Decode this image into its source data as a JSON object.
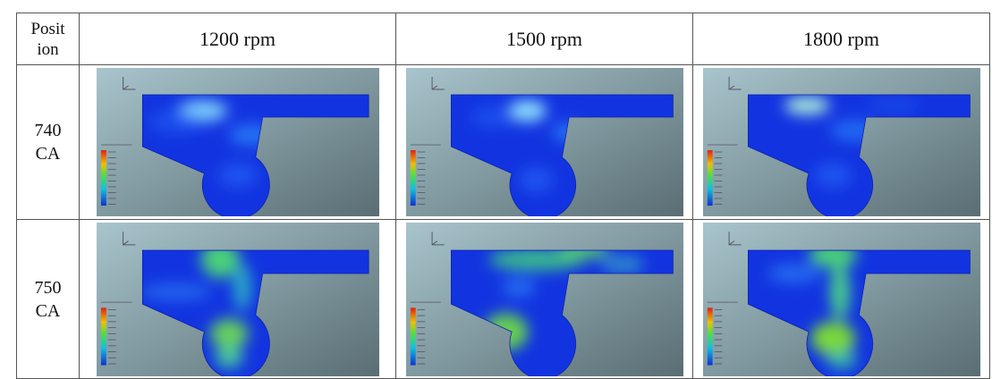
{
  "table": {
    "header": {
      "position_lines": [
        "Posit",
        "ion"
      ],
      "columns": [
        "1200 rpm",
        "1500 rpm",
        "1800 rpm"
      ]
    },
    "rows": [
      {
        "lines": [
          "740",
          "CA"
        ]
      },
      {
        "lines": [
          "750",
          "CA"
        ]
      }
    ]
  }
}
